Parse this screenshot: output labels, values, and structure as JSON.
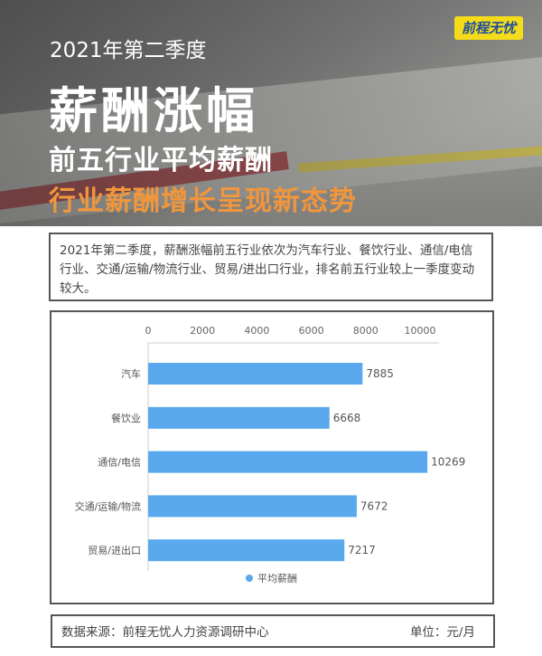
{
  "header": {
    "subtitle_year": "2021年第二季度",
    "title": "薪酬涨幅",
    "subtitle": "前五行业平均薪酬",
    "tagline": "行业薪酬增长呈现新态势",
    "logo": "前程无忧"
  },
  "intro": "2021年第二季度，薪酬涨幅前五行业依次为汽车行业、餐饮行业、通信/电信行业、交通/运输/物流行业、贸易/进出口行业，排名前五行业较上一季度变动较大。",
  "footer": {
    "source": "数据来源：前程无忧人力资源调研中心",
    "unit": "单位：元/月"
  },
  "chart_data": {
    "type": "bar",
    "orientation": "horizontal",
    "categories": [
      "汽车",
      "餐饮业",
      "通信/电信",
      "交通/运输/物流",
      "贸易/进出口"
    ],
    "series": [
      {
        "name": "平均薪酬",
        "values": [
          7885,
          6668,
          10269,
          7672,
          7217
        ],
        "color": "#5aa9ee"
      }
    ],
    "xlim": [
      0,
      10700
    ],
    "xticks": [
      0,
      2000,
      4000,
      6000,
      8000,
      10000
    ],
    "x_axis_position": "top",
    "grid": false,
    "legend": "bottom",
    "data_labels": true
  }
}
